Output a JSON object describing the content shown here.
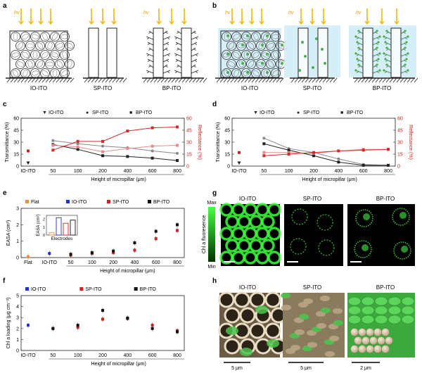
{
  "panels": {
    "a": {
      "letter": "a",
      "hv": "hv",
      "labels": [
        "IO-ITO",
        "SP-ITO",
        "BP-ITO"
      ]
    },
    "b": {
      "letter": "b",
      "hv": "hv",
      "labels": [
        "IO-ITO",
        "SP-ITO",
        "BP-ITO"
      ]
    },
    "c": {
      "letter": "c"
    },
    "d": {
      "letter": "d"
    },
    "e": {
      "letter": "e"
    },
    "f": {
      "letter": "f"
    },
    "g": {
      "letter": "g",
      "labels": [
        "IO-ITO",
        "SP-ITO",
        "BP-ITO"
      ],
      "scale_max": "Max",
      "scale_min": "Min",
      "scale_title": "Chl a fluoresence"
    },
    "h": {
      "letter": "h",
      "labels": [
        "IO-ITO",
        "SP-ITO",
        "BP-ITO"
      ],
      "scalebars": [
        "5 μm",
        "5 μm",
        "2 μm"
      ]
    }
  },
  "colors": {
    "io": "#2233cc",
    "sp": "#cc2222",
    "bp": "#111111",
    "flat": "#e8923a",
    "reflect": "#cc2222",
    "green": "#33cc33",
    "sun": "#f2b705",
    "water": "#d6eef8"
  },
  "chart_data": [
    {
      "id": "c",
      "type": "line",
      "legend": [
        "IO-ITO",
        "SP-ITO",
        "BP-ITO"
      ],
      "ylabel": "Transmittance (%)",
      "y2label": "Reflectance (%)",
      "xlabel": "Height of micropillar (μm)",
      "ylim": [
        0,
        60
      ],
      "yticks": [
        0,
        15,
        30,
        45,
        60
      ],
      "y2lim": [
        0,
        60
      ],
      "y2ticks": [
        0,
        15,
        30,
        45,
        60
      ],
      "categories": [
        "IO-ITO",
        "50",
        "100",
        "200",
        "400",
        "600",
        "800"
      ],
      "series": [
        {
          "name": "IO-ITO",
          "axis": "left",
          "values": [
            4,
            null,
            null,
            null,
            null,
            null,
            null
          ]
        },
        {
          "name": "SP-ITO",
          "axis": "left",
          "values": [
            null,
            32,
            28,
            25,
            23,
            19,
            16
          ]
        },
        {
          "name": "BP-ITO",
          "axis": "left",
          "values": [
            null,
            27,
            21,
            13,
            12,
            10,
            7
          ]
        },
        {
          "name": "IO-ITO",
          "axis": "right",
          "values": [
            19,
            null,
            null,
            null,
            null,
            null,
            null
          ]
        },
        {
          "name": "SP-ITO",
          "axis": "right",
          "values": [
            null,
            26,
            24,
            18,
            22,
            25,
            26
          ]
        },
        {
          "name": "BP-ITO",
          "axis": "right",
          "values": [
            null,
            20,
            31,
            31,
            44,
            48,
            49
          ]
        }
      ]
    },
    {
      "id": "d",
      "type": "line",
      "legend": [
        "IO-ITO",
        "SP-ITO",
        "BP-ITO"
      ],
      "ylabel": "Transmittance (%)",
      "y2label": "Reflectance (%)",
      "xlabel": "Height of micropillar (μm)",
      "ylim": [
        0,
        60
      ],
      "yticks": [
        0,
        15,
        30,
        45,
        60
      ],
      "y2lim": [
        0,
        60
      ],
      "y2ticks": [
        0,
        15,
        30,
        45,
        60
      ],
      "categories": [
        "IO-ITO",
        "50",
        "100",
        "200",
        "400",
        "600",
        "800"
      ],
      "series": [
        {
          "name": "IO-ITO",
          "axis": "left",
          "values": [
            4,
            null,
            null,
            null,
            null,
            null,
            null
          ]
        },
        {
          "name": "SP-ITO",
          "axis": "left",
          "values": [
            null,
            35,
            22,
            17,
            9,
            2,
            1
          ]
        },
        {
          "name": "BP-ITO",
          "axis": "left",
          "values": [
            null,
            28,
            20,
            13,
            5,
            1,
            1
          ]
        },
        {
          "name": "IO-ITO",
          "axis": "right",
          "values": [
            17,
            null,
            null,
            null,
            null,
            null,
            null
          ]
        },
        {
          "name": "SP-ITO",
          "axis": "right",
          "values": [
            null,
            17,
            17,
            16,
            19,
            21,
            21
          ]
        },
        {
          "name": "BP-ITO",
          "axis": "right",
          "values": [
            null,
            13,
            15,
            17,
            19,
            20,
            21
          ]
        }
      ]
    },
    {
      "id": "e",
      "type": "scatter",
      "legend": [
        "Flat",
        "IO-ITO",
        "SP-ITO",
        "BP-ITO"
      ],
      "ylabel": "EASA (cm²)",
      "xlabel": "Height of micropillar (μm)",
      "ylim": [
        0,
        3
      ],
      "yticks": [
        0,
        1,
        2,
        3
      ],
      "categories": [
        "Flat",
        "IO-ITO",
        "50",
        "100",
        "200",
        "400",
        "600",
        "800"
      ],
      "series": [
        {
          "name": "Flat",
          "values": [
            0.05,
            null,
            null,
            null,
            null,
            null,
            null,
            null
          ]
        },
        {
          "name": "IO-ITO",
          "values": [
            null,
            0.25,
            null,
            null,
            null,
            null,
            null,
            null
          ]
        },
        {
          "name": "SP-ITO",
          "values": [
            null,
            null,
            0.15,
            0.25,
            0.3,
            0.45,
            1.15,
            1.65
          ]
        },
        {
          "name": "BP-ITO",
          "values": [
            null,
            null,
            0.2,
            0.3,
            0.4,
            0.9,
            1.6,
            2.0
          ]
        }
      ],
      "inset": {
        "title": "EASA (cm²)",
        "xlabel": "Electrodes",
        "yticks": [
          0,
          1,
          2
        ],
        "values": [
          0.3,
          2.2,
          1.5,
          1.9
        ]
      }
    },
    {
      "id": "f",
      "type": "scatter",
      "legend": [
        "IO-ITO",
        "SP-ITO",
        "BP-ITO"
      ],
      "ylabel": "Chl a loading (μg cm⁻²)",
      "xlabel": "Height of micropillar (μm)",
      "ylim": [
        0,
        5
      ],
      "yticks": [
        0,
        1,
        2,
        3,
        4,
        5
      ],
      "categories": [
        "IO-ITO",
        "50",
        "100",
        "200",
        "400",
        "600",
        "800"
      ],
      "series": [
        {
          "name": "IO-ITO",
          "values": [
            2.3,
            null,
            null,
            null,
            null,
            null,
            null
          ]
        },
        {
          "name": "SP-ITO",
          "values": [
            null,
            2.0,
            2.1,
            2.85,
            2.9,
            2.3,
            1.8
          ]
        },
        {
          "name": "BP-ITO",
          "values": [
            null,
            2.0,
            2.3,
            3.65,
            2.95,
            2.0,
            1.7
          ]
        }
      ]
    }
  ]
}
